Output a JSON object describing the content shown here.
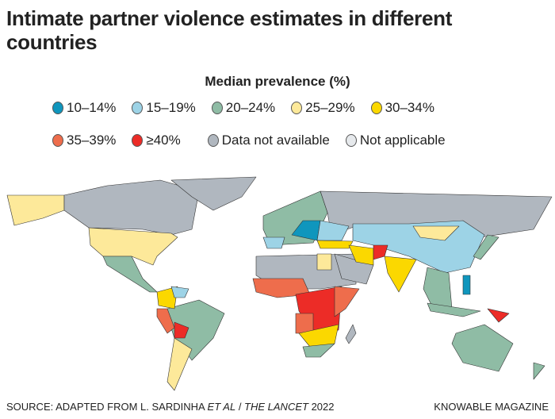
{
  "title": "Intimate partner violence estimates in different countries",
  "legend": {
    "title": "Median prevalence (%)",
    "row1": [
      {
        "label": "10–14%",
        "color": "#0f96bd"
      },
      {
        "label": "15–19%",
        "color": "#9dd3e6"
      },
      {
        "label": "20–24%",
        "color": "#8fbca5"
      },
      {
        "label": "25–29%",
        "color": "#fde99a"
      },
      {
        "label": "30–34%",
        "color": "#fbd800"
      }
    ],
    "row2": [
      {
        "label": "35–39%",
        "color": "#ee6d4c"
      },
      {
        "label": "≥40%",
        "color": "#ec2c27"
      },
      {
        "label": "Data not available",
        "color": "#b0b7bf"
      },
      {
        "label": "Not applicable",
        "color": "#e6e9ec"
      }
    ]
  },
  "map_categories": {
    "alaska": "25–29%",
    "canada": "Data not available",
    "greenland": "Data not available",
    "usa": "25–29%",
    "mexico_central_america": "20–24%",
    "colombia": "30–34%",
    "venezuela": "15–19%",
    "brazil": "20–24%",
    "peru": "35–39%",
    "bolivia": "≥40%",
    "argentina_chile": "25–29%",
    "europe": "20–24%",
    "spain": "15–19%",
    "russia": "Data not available",
    "central_europe": "10–14%",
    "eastern_europe": "15–19%",
    "kazakhstan_china": "15–19%",
    "mongolia": "25–29%",
    "turkey": "30–34%",
    "iran": "30–34%",
    "afghanistan": "≥40%",
    "india": "30–34%",
    "southeast_asia": "20–24%",
    "philippines": "10–14%",
    "japan": "20–24%",
    "north_africa": "Data not available",
    "arabia": "Data not available",
    "egypt": "25–29%",
    "west_africa": "35–39%",
    "central_africa": "≥40%",
    "east_africa": "35–39%",
    "angola": "35–39%",
    "southern_africa": "30–34%",
    "south_africa": "20–24%",
    "madagascar": "Data not available",
    "papua_new_guinea": "≥40%",
    "indonesia": "20–24%",
    "australia": "20–24%",
    "new_zealand": "20–24%"
  },
  "footer": {
    "source_prefix": "SOURCE: ADAPTED FROM L. SARDINHA ",
    "source_etal": "ET AL",
    "source_mid": " / ",
    "source_journal": "THE LANCET",
    "source_year": " 2022",
    "credit": "KNOWABLE MAGAZINE"
  }
}
